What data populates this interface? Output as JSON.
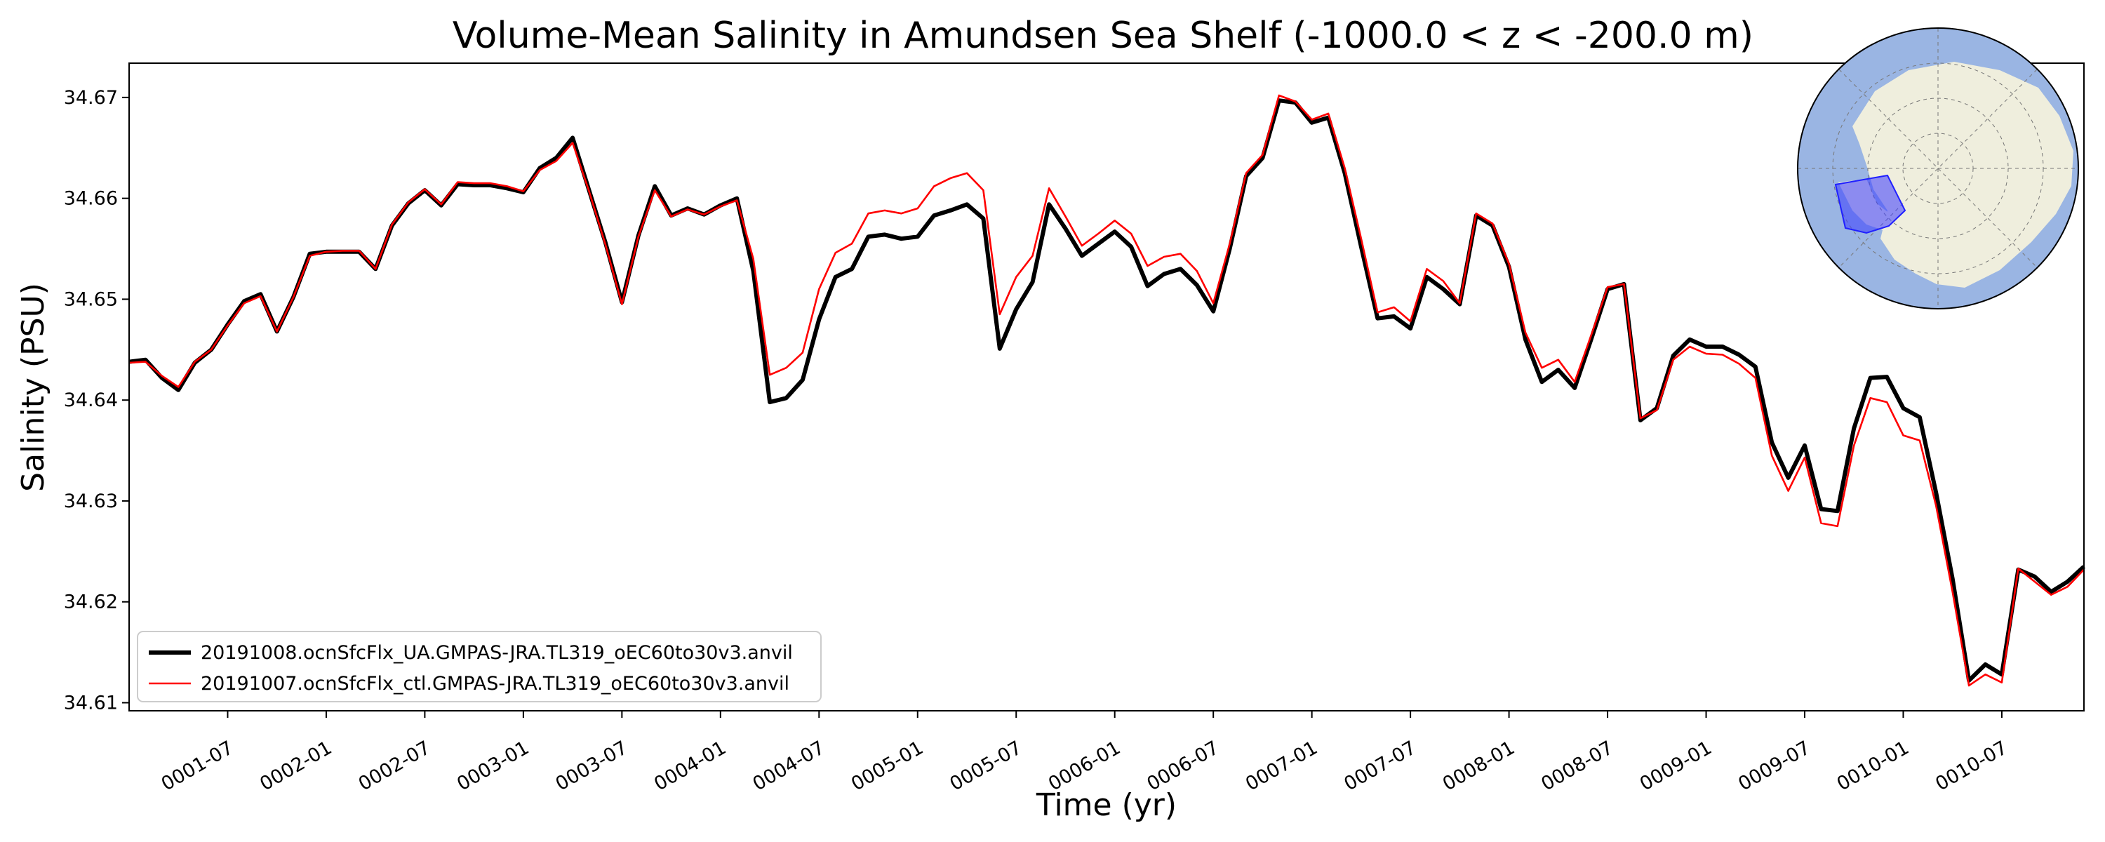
{
  "chart_data": {
    "type": "line",
    "title": "Volume-Mean Salinity in Amundsen Sea Shelf (-1000.0 < z < -200.0 m)",
    "xlabel": "Time (yr)",
    "ylabel": "Salinity (PSU)",
    "x_unit": "month index from 0001-01",
    "x_tick_labels": [
      "0001-07",
      "0002-01",
      "0002-07",
      "0003-01",
      "0003-07",
      "0004-01",
      "0004-07",
      "0005-01",
      "0005-07",
      "0006-01",
      "0006-07",
      "0007-01",
      "0007-07",
      "0008-01",
      "0008-07",
      "0009-01",
      "0009-07",
      "0010-01",
      "0010-07"
    ],
    "y_ticks": [
      "34.61",
      "34.62",
      "34.63",
      "34.64",
      "34.65",
      "34.66",
      "34.67"
    ],
    "ylim": [
      34.6092,
      34.6734
    ],
    "grid": false,
    "legend_position": "lower-left",
    "series": [
      {
        "name": "20191008.ocnSfcFlx_UA.GMPAS-JRA.TL319_oEC60to30v3.anvil",
        "color": "#000000",
        "linewidth": "thick",
        "values": [
          34.6438,
          34.644,
          34.6422,
          34.641,
          34.6437,
          34.645,
          34.6475,
          34.6498,
          34.6505,
          34.6468,
          34.6502,
          34.6545,
          34.6547,
          34.6547,
          34.6547,
          34.653,
          34.6573,
          34.6595,
          34.6608,
          34.6593,
          34.6614,
          34.6613,
          34.6613,
          34.661,
          34.6606,
          34.663,
          34.664,
          34.666,
          34.6608,
          34.6556,
          34.6497,
          34.6563,
          34.6612,
          34.6583,
          34.659,
          34.6584,
          34.6593,
          34.66,
          34.6528,
          34.6398,
          34.6402,
          34.642,
          34.648,
          34.6522,
          34.653,
          34.6562,
          34.6564,
          34.656,
          34.6562,
          34.6583,
          34.6588,
          34.6594,
          34.658,
          34.6451,
          34.649,
          34.6517,
          34.6594,
          34.657,
          34.6543,
          34.6555,
          34.6567,
          34.6552,
          34.6513,
          34.6525,
          34.653,
          34.6514,
          34.6488,
          34.655,
          34.6622,
          34.664,
          34.6697,
          34.6695,
          34.6675,
          34.668,
          34.6625,
          34.6552,
          34.6481,
          34.6483,
          34.6471,
          34.6522,
          34.651,
          34.6495,
          34.6583,
          34.6573,
          34.6532,
          34.646,
          34.6418,
          34.643,
          34.6412,
          34.646,
          34.651,
          34.6515,
          34.638,
          34.6392,
          34.6444,
          34.646,
          34.6453,
          34.6453,
          34.6445,
          34.6433,
          34.6358,
          34.6323,
          34.6355,
          34.6292,
          34.629,
          34.6372,
          34.6422,
          34.6423,
          34.6392,
          34.6383,
          34.6308,
          34.6223,
          34.6122,
          34.6138,
          34.6128,
          34.6232,
          34.6225,
          34.621,
          34.622,
          34.6235
        ]
      },
      {
        "name": "20191007.ocnSfcFlx_ctl.GMPAS-JRA.TL319_oEC60to30v3.anvil",
        "color": "#ff0000",
        "linewidth": "thin",
        "values": [
          34.6437,
          34.6438,
          34.6424,
          34.6413,
          34.6438,
          34.645,
          34.6474,
          34.6496,
          34.6503,
          34.6468,
          34.6502,
          34.6543,
          34.6547,
          34.6548,
          34.6548,
          34.653,
          34.6574,
          34.6596,
          34.6609,
          34.6594,
          34.6616,
          34.6615,
          34.6615,
          34.6612,
          34.6607,
          34.6628,
          34.6637,
          34.6655,
          34.6607,
          34.6554,
          34.6495,
          34.6562,
          34.6608,
          34.6582,
          34.6589,
          34.6584,
          34.6592,
          34.6598,
          34.654,
          34.6425,
          34.6432,
          34.6447,
          34.651,
          34.6546,
          34.6555,
          34.6585,
          34.6588,
          34.6585,
          34.659,
          34.6612,
          34.662,
          34.6625,
          34.6608,
          34.6485,
          34.6522,
          34.6543,
          34.661,
          34.6582,
          34.6553,
          34.6565,
          34.6578,
          34.6565,
          34.6533,
          34.6542,
          34.6545,
          34.6528,
          34.6496,
          34.6555,
          34.6625,
          34.6643,
          34.6702,
          34.6696,
          34.6678,
          34.6684,
          34.663,
          34.656,
          34.6487,
          34.6492,
          34.6478,
          34.653,
          34.6518,
          34.6496,
          34.6585,
          34.6575,
          34.6535,
          34.6467,
          34.6432,
          34.644,
          34.6418,
          34.6464,
          34.6512,
          34.6515,
          34.6382,
          34.639,
          34.644,
          34.6453,
          34.6446,
          34.6445,
          34.6436,
          34.6422,
          34.6345,
          34.631,
          34.6343,
          34.6278,
          34.6275,
          34.6355,
          34.6402,
          34.6398,
          34.6365,
          34.636,
          34.6295,
          34.621,
          34.6117,
          34.6128,
          34.612,
          34.6233,
          34.622,
          34.6207,
          34.6215,
          34.6232
        ]
      }
    ]
  }
}
